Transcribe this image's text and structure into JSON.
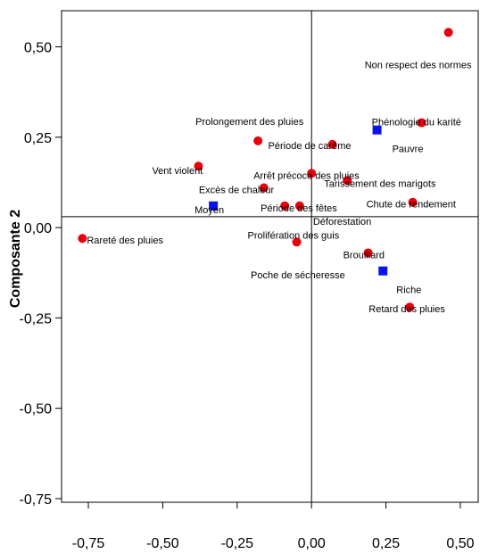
{
  "chart_data": {
    "type": "scatter",
    "xlabel": "",
    "ylabel": "Composante 2",
    "xlim": [
      -0.84,
      0.56
    ],
    "ylim": [
      -0.76,
      0.6
    ],
    "x_ticks": [
      {
        "value": -0.75,
        "label": "-0,75"
      },
      {
        "value": -0.5,
        "label": "-0,50"
      },
      {
        "value": -0.25,
        "label": "-0,25"
      },
      {
        "value": 0.0,
        "label": "0,00"
      },
      {
        "value": 0.25,
        "label": "0,25"
      },
      {
        "value": 0.5,
        "label": "0,50"
      }
    ],
    "y_ticks": [
      {
        "value": 0.5,
        "label": "0,50"
      },
      {
        "value": 0.25,
        "label": "0,25"
      },
      {
        "value": 0.0,
        "label": "0,00"
      },
      {
        "value": -0.25,
        "label": "-0,25"
      },
      {
        "value": -0.5,
        "label": "-0,50"
      },
      {
        "value": -0.75,
        "label": "-0,75"
      }
    ],
    "reference_lines": {
      "x": 0.0,
      "y": 0.03
    },
    "series": [
      {
        "marker": "circle",
        "color": "#e8000a",
        "points": [
          {
            "x": 0.46,
            "y": 0.54,
            "label": "Non respect des normes"
          },
          {
            "x": 0.37,
            "y": 0.29,
            "label": "Phénologie du karité"
          },
          {
            "x": -0.18,
            "y": 0.24,
            "label": "Prolongement des pluies"
          },
          {
            "x": 0.07,
            "y": 0.23,
            "label": "Période de carême"
          },
          {
            "x": -0.38,
            "y": 0.17,
            "label": "Vent violent"
          },
          {
            "x": 0.0,
            "y": 0.15,
            "label": "Arrêt précoce des pluies"
          },
          {
            "x": 0.12,
            "y": 0.13,
            "label": "Tarissement des marigots"
          },
          {
            "x": -0.16,
            "y": 0.11,
            "label": "Excès de chaleur"
          },
          {
            "x": 0.34,
            "y": 0.07,
            "label": "Chute de rendement"
          },
          {
            "x": -0.09,
            "y": 0.06,
            "label": "Période des fêtes"
          },
          {
            "x": -0.04,
            "y": 0.06,
            "label": "Déforestation"
          },
          {
            "x": -0.77,
            "y": -0.03,
            "label": "Rareté des pluies"
          },
          {
            "x": -0.05,
            "y": -0.04,
            "label": "Prolifération des guis"
          },
          {
            "x": 0.19,
            "y": -0.07,
            "label": "Brouillard"
          },
          {
            "x": 0.33,
            "y": -0.22,
            "label": "Retard des pluies"
          },
          {
            "x": 0,
            "y": 0,
            "label": "Poche de sécheresse"
          }
        ]
      },
      {
        "marker": "square",
        "color": "#0a14e8",
        "points": [
          {
            "x": 0.22,
            "y": 0.27,
            "label": "Pauvre"
          },
          {
            "x": -0.33,
            "y": 0.06,
            "label": "Moyen"
          },
          {
            "x": 0.24,
            "y": -0.12,
            "label": "Riche"
          }
        ]
      }
    ]
  }
}
